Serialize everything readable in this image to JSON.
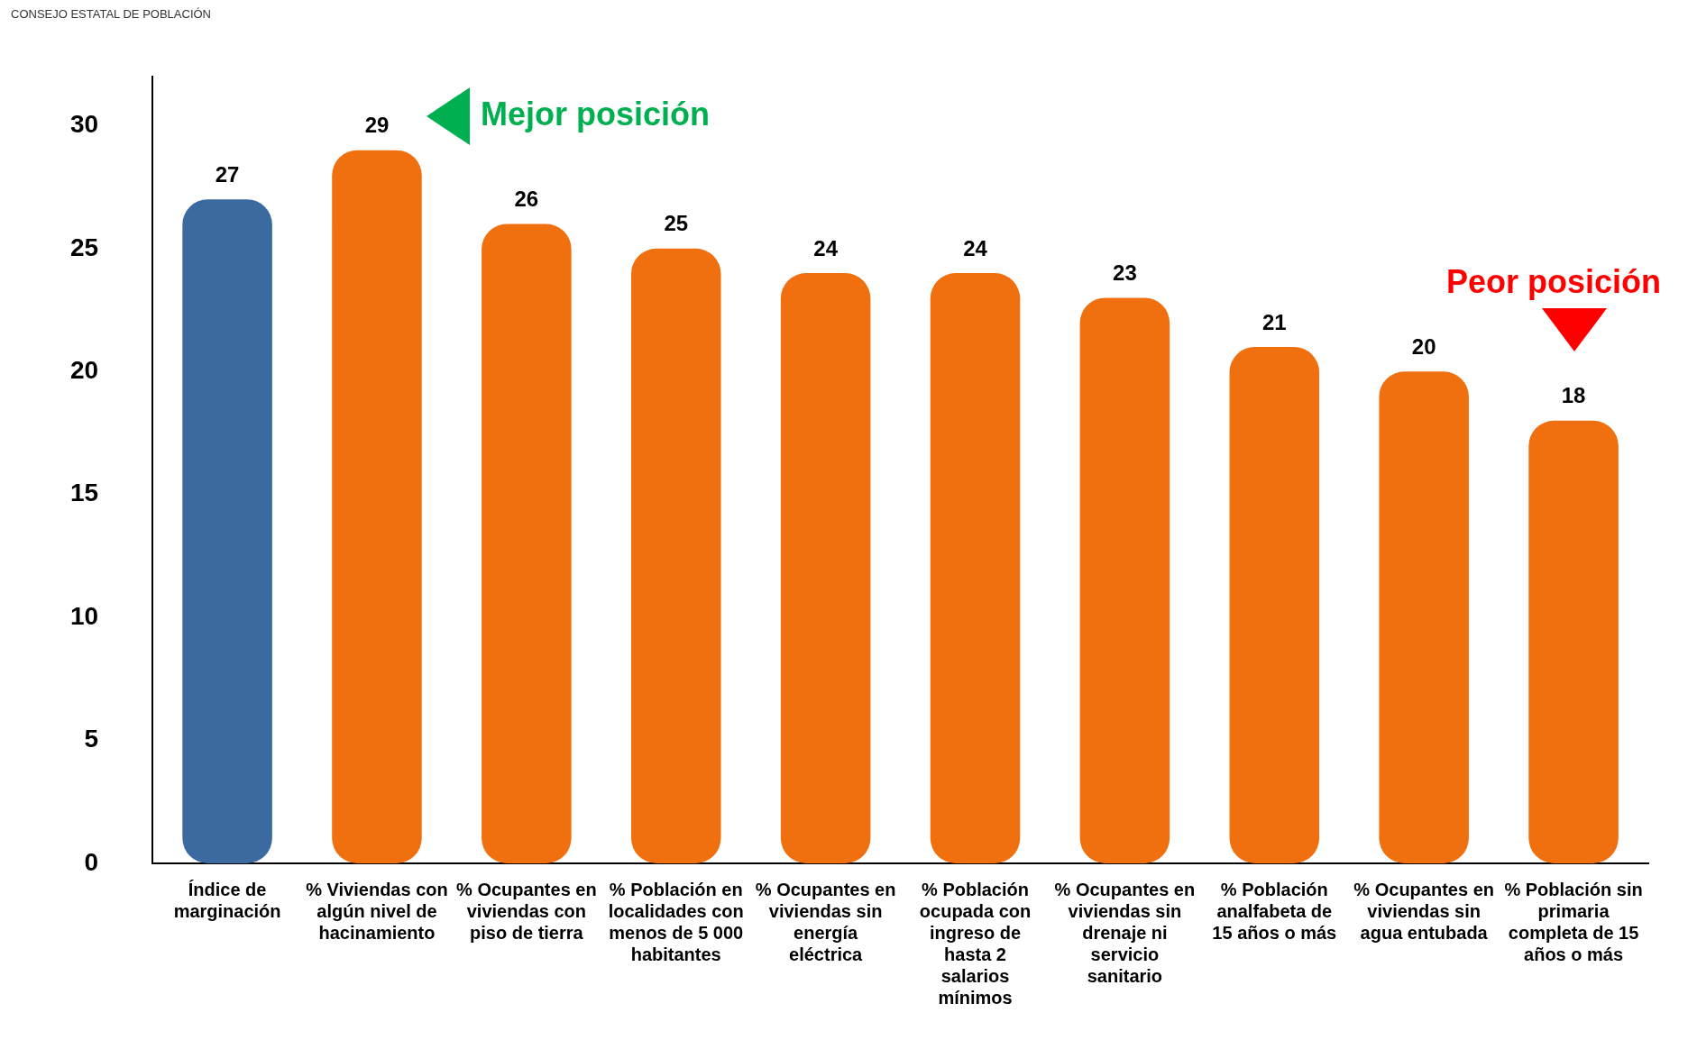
{
  "chart_data": {
    "type": "bar",
    "categories": [
      "Índice de marginación",
      "% Viviendas con algún nivel de hacinamiento",
      "% Ocupantes en viviendas con piso de tierra",
      "% Población en localidades con menos de 5 000 habitantes",
      "% Ocupantes en viviendas sin energía eléctrica",
      "% Población ocupada con ingreso de hasta 2 salarios mínimos",
      "% Ocupantes en viviendas sin drenaje ni servicio sanitario",
      "% Población analfabeta de 15 años o más",
      "% Ocupantes en viviendas sin agua entubada",
      "% Población sin primaria completa de 15 años o más"
    ],
    "values": [
      27,
      29,
      26,
      25,
      24,
      24,
      23,
      21,
      20,
      18
    ],
    "colors": [
      "#3a6aa0",
      "#f07010",
      "#f07010",
      "#f07010",
      "#f07010",
      "#f07010",
      "#f07010",
      "#f07010",
      "#f07010",
      "#f07010"
    ],
    "data_labels": true,
    "ylim": [
      0,
      32
    ],
    "yticks": [
      0,
      5,
      10,
      15,
      20,
      25,
      30
    ],
    "grid": false,
    "legend": false,
    "annotations": [
      "CONSEJO ESTATAL DE POBLACIÓN",
      "Mejor posición",
      "Peor posición"
    ]
  }
}
